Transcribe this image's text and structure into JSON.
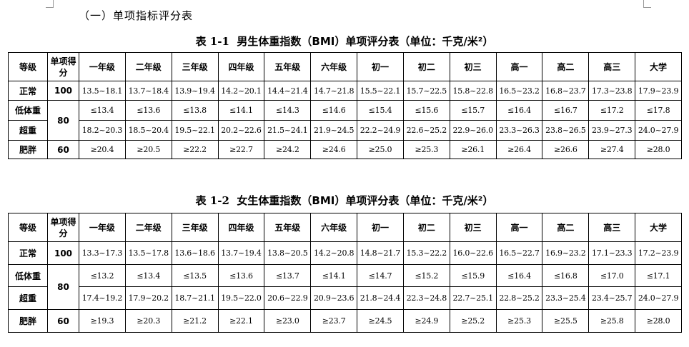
{
  "section_heading": "（一）单项指标评分表",
  "tables": [
    {
      "title_num": "表 1-1",
      "title_text": "男生体重指数（BMI）单项评分表（单位：千克/米²）",
      "header": {
        "grade": "等级",
        "score": "单项得分",
        "years": [
          "一年级",
          "二年级",
          "三年级",
          "四年级",
          "五年级",
          "六年级",
          "初一",
          "初二",
          "初三",
          "高一",
          "高二",
          "高三",
          "大学"
        ]
      },
      "rows": {
        "normal": {
          "label": "正常",
          "score": "100",
          "values": [
            "13.5~18.1",
            "13.7~18.4",
            "13.9~19.4",
            "14.2~20.1",
            "14.4~21.4",
            "14.7~21.8",
            "15.5~22.1",
            "15.7~22.5",
            "15.8~22.8",
            "16.5~23.2",
            "16.8~23.7",
            "17.3~23.8",
            "17.9~23.9"
          ]
        },
        "underweight": {
          "label": "低体重",
          "values": [
            "≤13.4",
            "≤13.6",
            "≤13.8",
            "≤14.1",
            "≤14.3",
            "≤14.6",
            "≤15.4",
            "≤15.6",
            "≤15.7",
            "≤16.4",
            "≤16.7",
            "≤17.2",
            "≤17.8"
          ]
        },
        "shared_score": "80",
        "overweight": {
          "label": "超重",
          "values": [
            "18.2~20.3",
            "18.5~20.4",
            "19.5~22.1",
            "20.2~22.6",
            "21.5~24.1",
            "21.9~24.5",
            "22.2~24.9",
            "22.6~25.2",
            "22.9~26.0",
            "23.3~26.3",
            "23.8~26.5",
            "23.9~27.3",
            "24.0~27.9"
          ]
        },
        "obese": {
          "label": "肥胖",
          "score": "60",
          "values": [
            "≥20.4",
            "≥20.5",
            "≥22.2",
            "≥22.7",
            "≥24.2",
            "≥24.6",
            "≥25.0",
            "≥25.3",
            "≥26.1",
            "≥26.4",
            "≥26.6",
            "≥27.4",
            "≥28.0"
          ]
        }
      }
    },
    {
      "title_num": "表 1-2",
      "title_text": "女生体重指数（BMI）单项评分表（单位：千克/米²）",
      "header": {
        "grade": "等级",
        "score": "单项得分",
        "years": [
          "一年级",
          "二年级",
          "三年级",
          "四年级",
          "五年级",
          "六年级",
          "初一",
          "初二",
          "初三",
          "高一",
          "高二",
          "高三",
          "大学"
        ]
      },
      "rows": {
        "normal": {
          "label": "正常",
          "score": "100",
          "values": [
            "13.3~17.3",
            "13.5~17.8",
            "13.6~18.6",
            "13.7~19.4",
            "13.8~20.5",
            "14.2~20.8",
            "14.8~21.7",
            "15.3~22.2",
            "16.0~22.6",
            "16.5~22.7",
            "16.9~23.2",
            "17.1~23.3",
            "17.2~23.9"
          ]
        },
        "underweight": {
          "label": "低体重",
          "values": [
            "≤13.2",
            "≤13.4",
            "≤13.5",
            "≤13.6",
            "≤13.7",
            "≤14.1",
            "≤14.7",
            "≤15.2",
            "≤15.9",
            "≤16.4",
            "≤16.8",
            "≤17.0",
            "≤17.1"
          ]
        },
        "shared_score": "80",
        "overweight": {
          "label": "超重",
          "values": [
            "17.4~19.2",
            "17.9~20.2",
            "18.7~21.1",
            "19.5~22.0",
            "20.6~22.9",
            "20.9~23.6",
            "21.8~24.4",
            "22.3~24.8",
            "22.7~25.1",
            "22.8~25.2",
            "23.3~25.4",
            "23.4~25.7",
            "24.0~27.9"
          ]
        },
        "obese": {
          "label": "肥胖",
          "score": "60",
          "values": [
            "≥19.3",
            "≥20.3",
            "≥21.2",
            "≥22.1",
            "≥23.0",
            "≥23.7",
            "≥24.5",
            "≥24.9",
            "≥25.2",
            "≥25.3",
            "≥25.5",
            "≥25.8",
            "≥28.0"
          ]
        }
      }
    }
  ]
}
